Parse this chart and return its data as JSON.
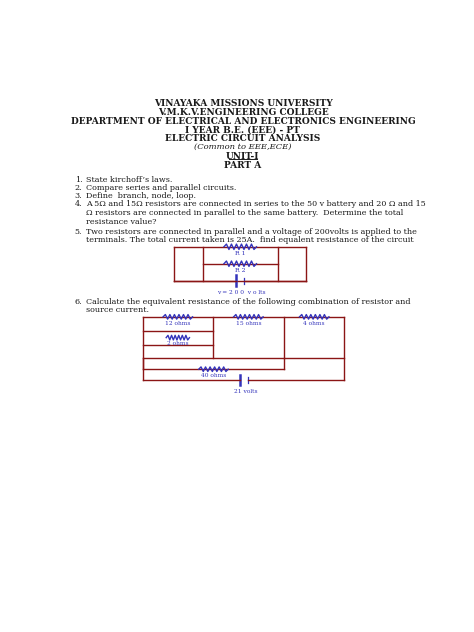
{
  "title_lines": [
    "VINAYAKA MISSIONS UNIVERSITY",
    "V.M.K.V.ENGINEERING COLLEGE",
    "DEPARTMENT OF ELECTRICAL AND ELECTRONICS ENGINEERING",
    "I YEAR B.E. (EEE) - PT",
    "ELECTRIC CIRCUIT ANALYSIS",
    "(Common to EEE,ECE)",
    "UNIT-I",
    "PART A"
  ],
  "title_bold": [
    true,
    true,
    true,
    true,
    true,
    false,
    true,
    true
  ],
  "title_underline": [
    false,
    false,
    false,
    false,
    false,
    false,
    true,
    false
  ],
  "title_italic": [
    false,
    false,
    false,
    false,
    false,
    true,
    false,
    false
  ],
  "title_sizes": [
    6.5,
    6.5,
    6.5,
    6.5,
    6.5,
    6.0,
    6.5,
    6.5
  ],
  "q1": "State kirchoff’s laws.",
  "q2": "Compare series and parallel circuits.",
  "q3": "Define  branch, node, loop.",
  "q4a": "A 5Ω and 15Ω resistors are connected in series to the 50 v battery and 20 Ω and 15",
  "q4b": "Ω resistors are connected in parallel to the same battery.  Determine the total",
  "q4c": "resistance value?",
  "q5a": "Two resistors are connected in parallel and a voltage of 200volts is applied to the",
  "q5b": "terminals. The total current taken is 25A.  find equalent resistance of the circuit",
  "q6a": "Calculate the equivalent resistance of the following combination of resistor and",
  "q6b": "source current.",
  "circuit1_label_r1": "R 1",
  "circuit1_label_r2": "R 2",
  "circuit1_label_v": "v = 2 0 0  v o lts",
  "circuit2_label_r1": "12 ohms",
  "circuit2_label_r2": "15 ohms",
  "circuit2_label_r3": "4 ohms",
  "circuit2_label_r4": "2 ohms",
  "circuit2_label_r5": "40 ohms",
  "circuit2_label_v": "21 volts",
  "bg_color": "#ffffff",
  "text_color": "#1a1a1a",
  "circuit_color": "#8B1515",
  "resistor_color": "#3333bb",
  "q_fontsize": 5.8,
  "num_fontsize": 5.8
}
